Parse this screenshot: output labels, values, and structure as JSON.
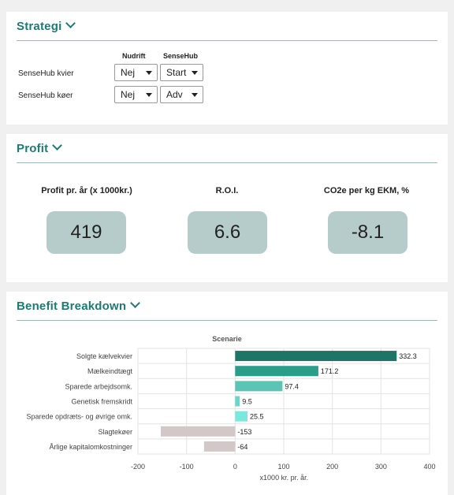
{
  "strategi": {
    "title": "Strategi",
    "col_nudrift": "Nudrift",
    "col_sensehub": "SenseHub",
    "rows": [
      {
        "label": "SenseHub kvier",
        "nudrift": "Nej",
        "sensehub": "Start"
      },
      {
        "label": "SenseHub køer",
        "nudrift": "Nej",
        "sensehub": "Adv"
      }
    ]
  },
  "profit": {
    "title": "Profit",
    "kpis": [
      {
        "label": "Profit pr. år (x 1000kr.)",
        "value": "419"
      },
      {
        "label": "R.O.I.",
        "value": "6.6"
      },
      {
        "label": "CO2e per kg EKM, %",
        "value": "-8.1"
      }
    ]
  },
  "benefit": {
    "title": "Benefit Breakdown"
  },
  "chart_data": {
    "type": "bar",
    "orientation": "horizontal",
    "title": "Scenarie",
    "xlabel": "x1000 kr. pr. år.",
    "ylabel": "",
    "xlim": [
      -200,
      400
    ],
    "xticks": [
      "-200",
      "-100",
      "0",
      "100",
      "200",
      "300",
      "400"
    ],
    "grid": true,
    "categories": [
      "Solgte kælvekvier",
      "Mælkeindtægt",
      "Sparede arbejdsomk.",
      "Genetisk fremskridt",
      "Sparede opdræts- og øvrige omk.",
      "Slagtekøer",
      "Årlige kapitalomkostninger"
    ],
    "values": [
      332.3,
      171.2,
      97.4,
      9.5,
      25.5,
      -153,
      -64
    ],
    "value_labels": [
      "332.3",
      "171.2",
      "97.4",
      "9.5",
      "25.5",
      "-153",
      "-64"
    ],
    "colors": [
      "#1d7567",
      "#2c9c8b",
      "#5bc4b4",
      "#66d9cc",
      "#7ae8dc",
      "#d2c8c8",
      "#d2c8c8"
    ]
  }
}
